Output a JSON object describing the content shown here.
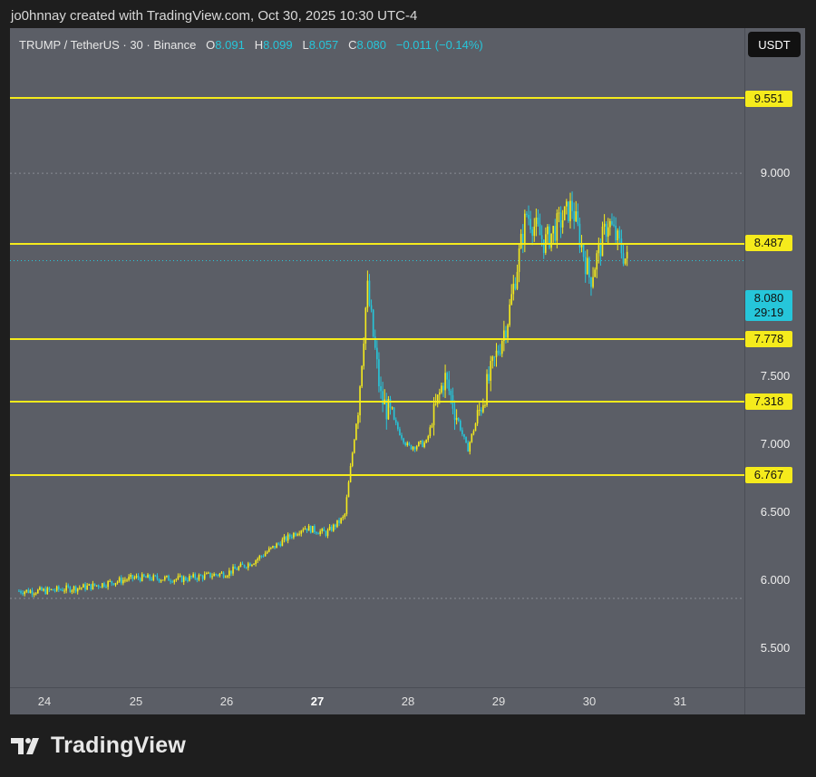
{
  "header": {
    "attribution": "jo0hnnay created with TradingView.com, Oct 30, 2025 10:30 UTC-4"
  },
  "legend": {
    "symbol": "TRUMP / TetherUS · 30 · Binance",
    "o_label": "O",
    "o_value": "8.091",
    "h_label": "H",
    "h_value": "8.099",
    "l_label": "L",
    "l_value": "8.057",
    "c_label": "C",
    "c_value": "8.080",
    "change": "−0.011 (−0.14%)"
  },
  "unit_button": "USDT",
  "current_price": {
    "value": "8.080",
    "countdown": "29:19"
  },
  "colors": {
    "level_line": "#f5eb1c",
    "candle_up": "#f5eb1c",
    "candle_down": "#26c6da",
    "background": "#5b5e66"
  },
  "brand": {
    "name": "TradingView"
  },
  "chart_data": {
    "type": "candlestick",
    "symbol": "TRUMP / TetherUS",
    "interval": "30",
    "exchange": "Binance",
    "quote_currency": "USDT",
    "ylim": [
      5.2,
      9.65
    ],
    "y_ticks": [
      "5.500",
      "6.000",
      "6.500",
      "7.000",
      "7.500",
      "9.000"
    ],
    "x_ticks": [
      "24",
      "25",
      "26",
      "27",
      "28",
      "29",
      "30",
      "31"
    ],
    "horizontal_levels": [
      "9.551",
      "8.487",
      "7.778",
      "7.318",
      "6.767"
    ],
    "approx_path_close": [
      {
        "day": 24.0,
        "price": 5.85
      },
      {
        "day": 24.5,
        "price": 5.88
      },
      {
        "day": 25.0,
        "price": 5.94
      },
      {
        "day": 25.5,
        "price": 5.93
      },
      {
        "day": 26.0,
        "price": 5.97
      },
      {
        "day": 26.3,
        "price": 6.05
      },
      {
        "day": 26.6,
        "price": 6.18
      },
      {
        "day": 26.85,
        "price": 6.28
      },
      {
        "day": 27.1,
        "price": 6.24
      },
      {
        "day": 27.3,
        "price": 6.35
      },
      {
        "day": 27.45,
        "price": 7.1
      },
      {
        "day": 27.55,
        "price": 7.9
      },
      {
        "day": 27.7,
        "price": 7.15
      },
      {
        "day": 28.0,
        "price": 6.82
      },
      {
        "day": 28.2,
        "price": 6.85
      },
      {
        "day": 28.4,
        "price": 7.3
      },
      {
        "day": 28.65,
        "price": 6.8
      },
      {
        "day": 28.9,
        "price": 7.3
      },
      {
        "day": 29.1,
        "price": 7.7
      },
      {
        "day": 29.3,
        "price": 8.4
      },
      {
        "day": 29.5,
        "price": 8.2
      },
      {
        "day": 29.8,
        "price": 8.45
      },
      {
        "day": 30.0,
        "price": 7.95
      },
      {
        "day": 30.2,
        "price": 8.35
      },
      {
        "day": 30.4,
        "price": 8.08
      }
    ]
  }
}
